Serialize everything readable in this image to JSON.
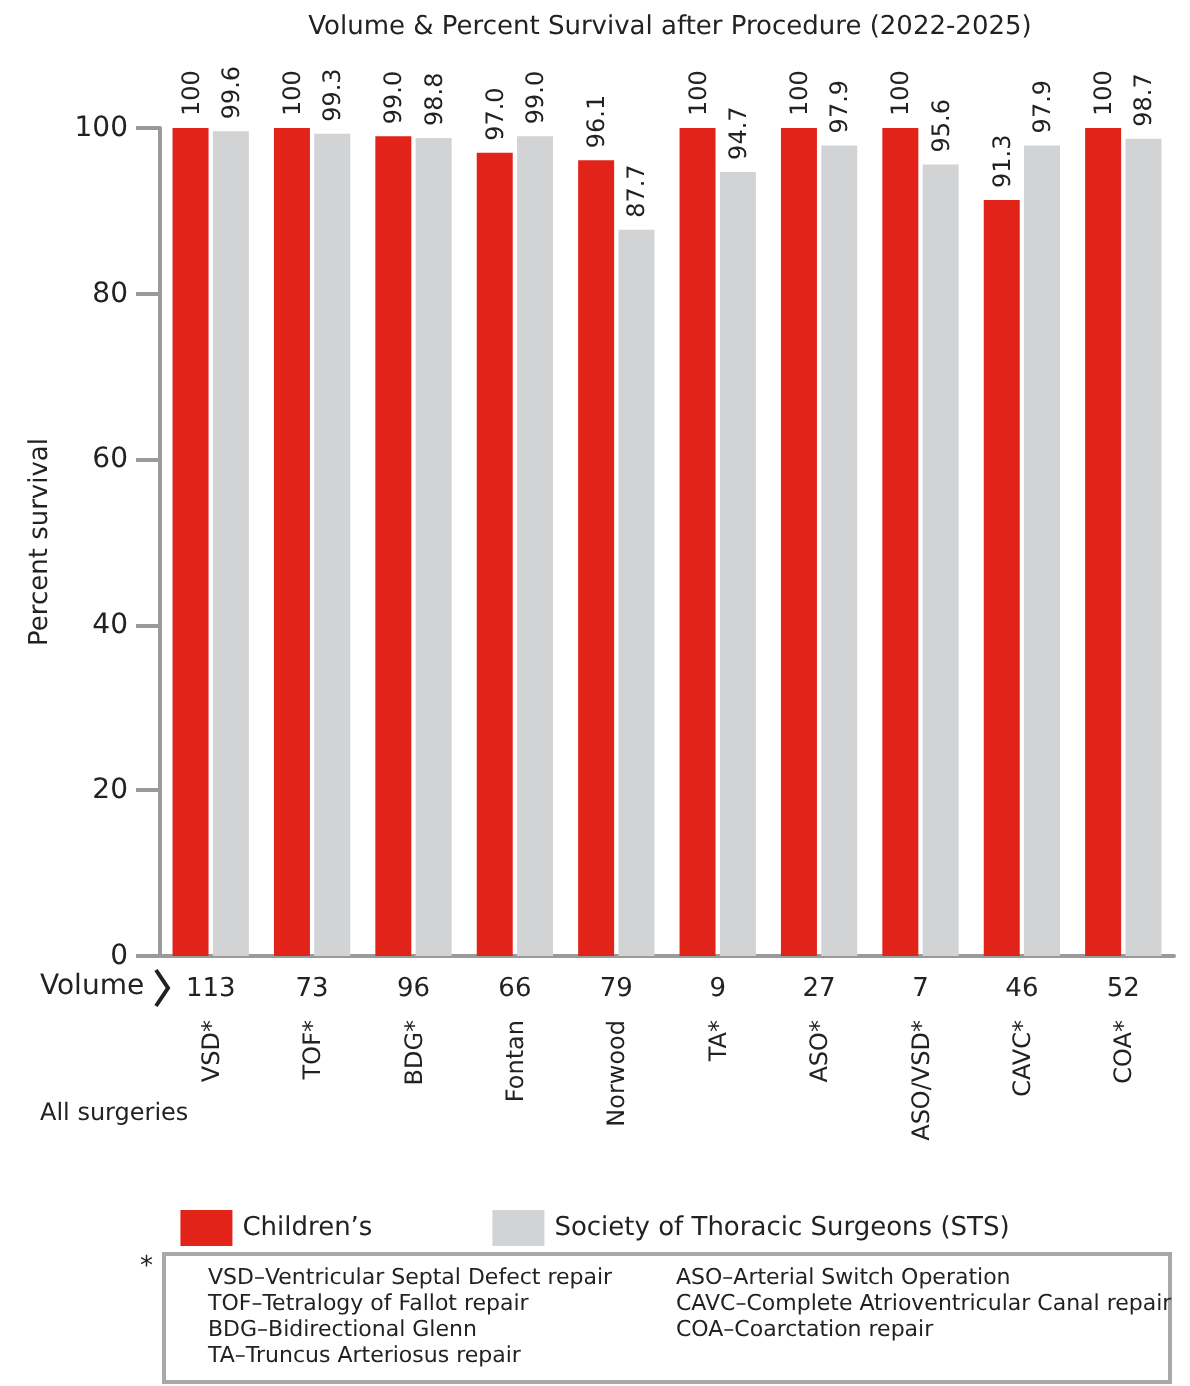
{
  "chart_data": {
    "type": "bar",
    "title": "Volume & Percent Survival after Procedure (2022-2025)",
    "ylabel": "Percent survival",
    "categories": [
      "VSD*",
      "TOF*",
      "BDG*",
      "Fontan",
      "Norwood",
      "TA*",
      "ASO*",
      "ASO/VSD*",
      "CAVC*",
      "COA*"
    ],
    "series": [
      {
        "name": "Children’s",
        "color": "#e2231a",
        "values": [
          100,
          100,
          99.0,
          97.0,
          96.1,
          100,
          100,
          100,
          91.3,
          100
        ],
        "value_labels": [
          "100",
          "100",
          "99.0",
          "97.0",
          "96.1",
          "100",
          "100",
          "100",
          "91.3",
          "100"
        ]
      },
      {
        "name": "Society of Thoracic Surgeons (STS)",
        "color": "#d1d3d4",
        "values": [
          99.6,
          99.3,
          98.8,
          99.0,
          87.7,
          94.7,
          97.9,
          95.6,
          97.9,
          98.7
        ],
        "value_labels": [
          "99.6",
          "99.3",
          "98.8",
          "99.0",
          "87.7",
          "94.7",
          "97.9",
          "95.6",
          "97.9",
          "98.7"
        ]
      }
    ],
    "ylim": [
      0,
      100
    ],
    "yticks": [
      0,
      20,
      40,
      60,
      80,
      100
    ],
    "grid": false,
    "legend": "bottom",
    "annotations": [
      "All surgeries",
      "Volume",
      "113",
      "73",
      "96",
      "66",
      "79",
      "9",
      "27",
      "7",
      "46",
      "52",
      "*",
      "VSD–Ventricular Septal Defect repair",
      "TOF–Tetralogy of Fallot repair",
      "BDG–Bidirectional Glenn",
      "TA–Truncus Arteriosus repair",
      "ASO–Arterial Switch Operation",
      "CAVC–Complete Atrioventricular Canal repair",
      "COA–Coarctation repair"
    ]
  }
}
